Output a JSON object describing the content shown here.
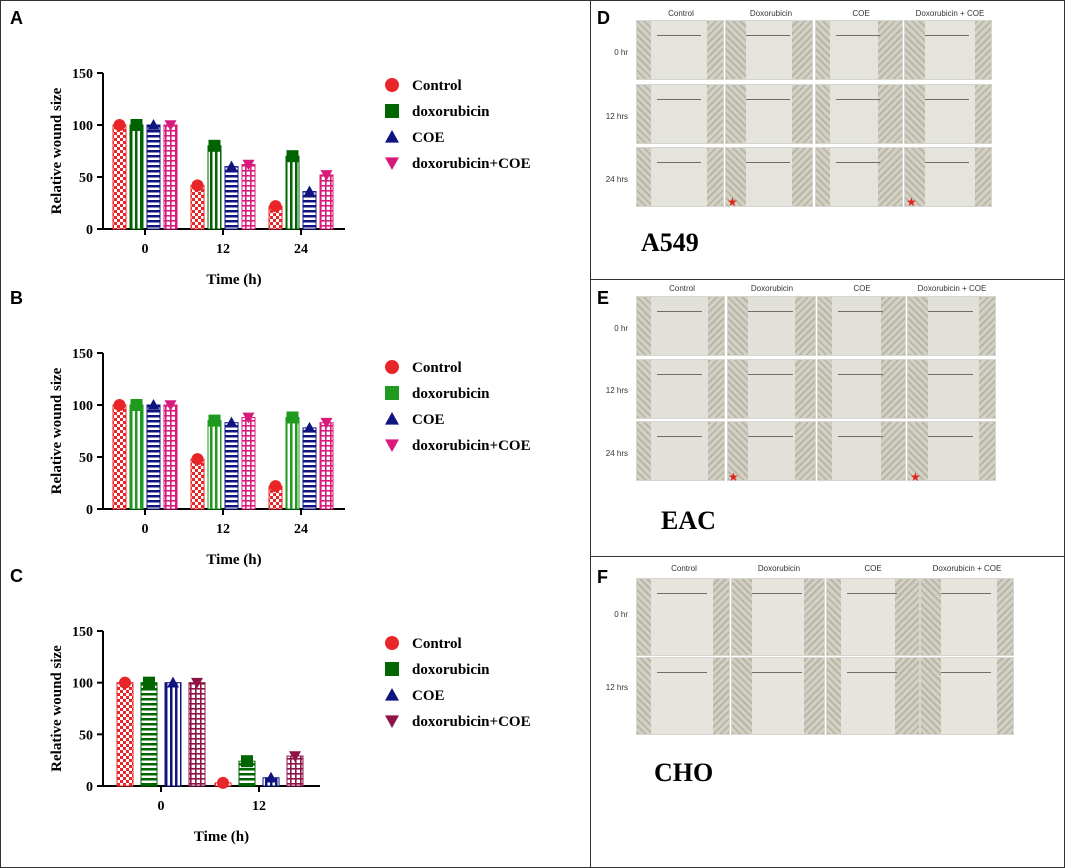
{
  "colors": {
    "control": "#e8262a",
    "doxorubicin_dark": "#006400",
    "doxorubicin_light": "#1e9a1e",
    "coe": "#101480",
    "combo_pink": "#d81b7a",
    "combo_maroon": "#8e1447"
  },
  "panels": {
    "A": {
      "letter": "A"
    },
    "B": {
      "letter": "B"
    },
    "C": {
      "letter": "C"
    },
    "D": {
      "letter": "D",
      "cell_line": "A549",
      "columns": [
        "Control",
        "Doxorubicin",
        "COE",
        "Doxorubicin + COE"
      ],
      "rows": [
        "0 hr",
        "12 hrs",
        "24 hrs"
      ],
      "star": "★"
    },
    "E": {
      "letter": "E",
      "cell_line": "EAC",
      "columns": [
        "Control",
        "Doxorubicin",
        "COE",
        "Doxorubicin + COE"
      ],
      "rows": [
        "0 hr",
        "12 hrs",
        "24 hrs"
      ],
      "star": "★"
    },
    "F": {
      "letter": "F",
      "cell_line": "CHO",
      "columns": [
        "Control",
        "Doxorubicin",
        "COE",
        "Doxorubicin + COE"
      ],
      "rows": [
        "0 hr",
        "12 hrs"
      ]
    }
  },
  "chart_data": [
    {
      "id": "A",
      "type": "bar",
      "categories": [
        "0",
        "12",
        "24"
      ],
      "series": [
        {
          "name": "Control",
          "values": [
            100,
            42,
            22
          ],
          "marker": "circle",
          "fill": "checker",
          "color": "#e8262a"
        },
        {
          "name": "doxorubicin",
          "values": [
            100,
            80,
            70
          ],
          "marker": "square",
          "fill": "vertical",
          "color": "#006400"
        },
        {
          "name": "COE",
          "values": [
            100,
            60,
            36
          ],
          "marker": "triangle",
          "fill": "horizontal",
          "color": "#101480"
        },
        {
          "name": "doxorubicin+COE",
          "values": [
            100,
            62,
            52
          ],
          "marker": "triangle-down",
          "fill": "grid",
          "color": "#d81b7a"
        }
      ],
      "xlabel": "Time (h)",
      "ylabel": "Relative wound size",
      "ylim": [
        0,
        150
      ],
      "yticks": [
        "0",
        "50",
        "100",
        "150"
      ]
    },
    {
      "id": "B",
      "type": "bar",
      "categories": [
        "0",
        "12",
        "24"
      ],
      "series": [
        {
          "name": "Control",
          "values": [
            100,
            48,
            22
          ],
          "marker": "circle",
          "fill": "checker",
          "color": "#e8262a"
        },
        {
          "name": "doxorubicin",
          "values": [
            100,
            85,
            88
          ],
          "marker": "square",
          "fill": "vertical",
          "color": "#1e9a1e"
        },
        {
          "name": "COE",
          "values": [
            100,
            83,
            78
          ],
          "marker": "triangle",
          "fill": "horizontal",
          "color": "#101480"
        },
        {
          "name": "doxorubicin+COE",
          "values": [
            100,
            88,
            83
          ],
          "marker": "triangle-down",
          "fill": "grid",
          "color": "#d81b7a"
        }
      ],
      "xlabel": "Time (h)",
      "ylabel": "Relative wound size",
      "ylim": [
        0,
        150
      ],
      "yticks": [
        "0",
        "50",
        "100",
        "150"
      ]
    },
    {
      "id": "C",
      "type": "bar",
      "categories": [
        "0",
        "12"
      ],
      "series": [
        {
          "name": "Control",
          "values": [
            100,
            3
          ],
          "marker": "circle",
          "fill": "checker",
          "color": "#e8262a"
        },
        {
          "name": "doxorubicin",
          "values": [
            100,
            24
          ],
          "marker": "square",
          "fill": "horizontal",
          "color": "#006400"
        },
        {
          "name": "COE",
          "values": [
            100,
            8
          ],
          "marker": "triangle",
          "fill": "vertical",
          "color": "#101480"
        },
        {
          "name": "doxorubicin+COE",
          "values": [
            100,
            29
          ],
          "marker": "triangle-down",
          "fill": "grid",
          "color": "#8e1447"
        }
      ],
      "xlabel": "Time (h)",
      "ylabel": "Relative wound size",
      "ylim": [
        0,
        150
      ],
      "yticks": [
        "0",
        "50",
        "100",
        "150"
      ]
    }
  ]
}
